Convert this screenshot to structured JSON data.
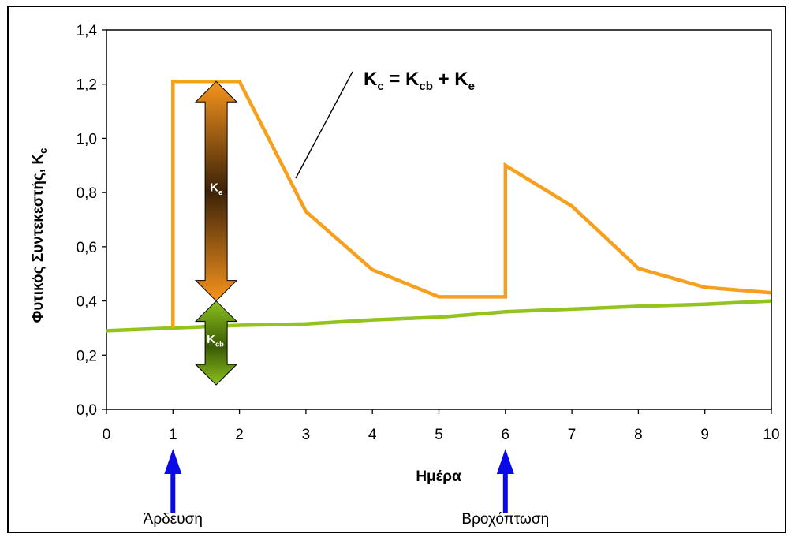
{
  "chart_data": {
    "type": "line",
    "ylabel": "Φυτικός Συντεκεστής, K",
    "ylabel_sub": "c",
    "xlabel": "Ημέρα",
    "xlim": [
      0,
      10
    ],
    "ylim": [
      0,
      1.4
    ],
    "x_ticks": [
      "0",
      "1",
      "2",
      "3",
      "4",
      "5",
      "6",
      "7",
      "8",
      "9",
      "10"
    ],
    "y_ticks": [
      "0,0",
      "0,2",
      "0,4",
      "0,6",
      "0,8",
      "1,0",
      "1,2",
      "1,4"
    ],
    "grid": false,
    "series": [
      {
        "name": "Kc = Kcb + Ke",
        "color": "#f7a01e",
        "points": [
          [
            1,
            0.3
          ],
          [
            1,
            1.21
          ],
          [
            2,
            1.21
          ],
          [
            3,
            0.73
          ],
          [
            4,
            0.515
          ],
          [
            5,
            0.415
          ],
          [
            6,
            0.415
          ],
          [
            6,
            0.9
          ],
          [
            7,
            0.75
          ],
          [
            8,
            0.52
          ],
          [
            9,
            0.45
          ],
          [
            10,
            0.43
          ]
        ]
      },
      {
        "name": "Kcb",
        "color": "#92c31e",
        "points": [
          [
            0,
            0.29
          ],
          [
            1,
            0.3
          ],
          [
            2,
            0.31
          ],
          [
            3,
            0.315
          ],
          [
            4,
            0.33
          ],
          [
            5,
            0.34
          ],
          [
            6,
            0.36
          ],
          [
            7,
            0.37
          ],
          [
            8,
            0.38
          ],
          [
            9,
            0.388
          ],
          [
            10,
            0.4
          ]
        ]
      }
    ],
    "equation": {
      "a": "K",
      "a_sub": "c",
      "eq": " = ",
      "b": "K",
      "b_sub": "cb",
      "plus": " + ",
      "c": "K",
      "c_sub": "e"
    },
    "bands": [
      {
        "label": "K",
        "sub": "e",
        "x": 1.65,
        "from": 0.4,
        "to": 1.21,
        "color_top": "#f7941d",
        "color_mid": "#3b2208"
      },
      {
        "label": "K",
        "sub": "cb",
        "x": 1.65,
        "from": 0.09,
        "to": 0.4,
        "color_top": "#7aa510",
        "color_mid": "#3a5a04"
      }
    ],
    "events": [
      {
        "x": 1,
        "label": "Άρδευση",
        "color": "#0a0ae6"
      },
      {
        "x": 6,
        "label": "Βροχόπτωση",
        "color": "#0a0ae6"
      }
    ]
  }
}
